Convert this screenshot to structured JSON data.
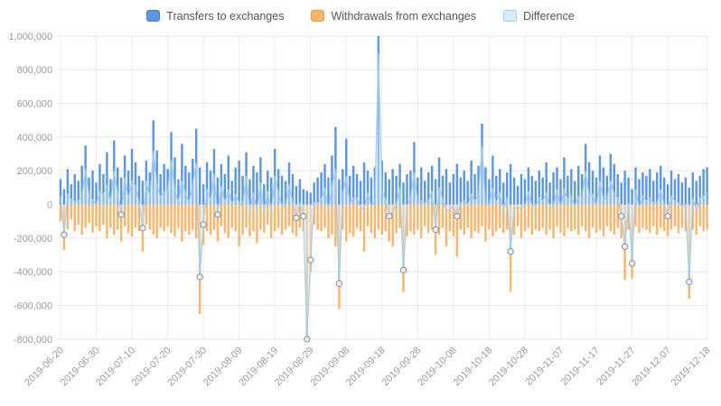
{
  "chart_data": {
    "type": "bar",
    "title": "",
    "xlabel": "",
    "ylabel": "",
    "ylim": [
      -800000,
      1000000
    ],
    "y_ticks": [
      1000000,
      800000,
      600000,
      400000,
      200000,
      0,
      -200000,
      -400000,
      -600000,
      -800000
    ],
    "x_start": "2019-06-20",
    "x_end": "2019-12-18",
    "x_ticks": [
      {
        "label": "2019-06-20",
        "i": 0
      },
      {
        "label": "2019-06-30",
        "i": 10
      },
      {
        "label": "2019-07-10",
        "i": 20
      },
      {
        "label": "2019-07-20",
        "i": 30
      },
      {
        "label": "2019-07-30",
        "i": 40
      },
      {
        "label": "2019-08-09",
        "i": 50
      },
      {
        "label": "2019-08-19",
        "i": 60
      },
      {
        "label": "2019-08-29",
        "i": 70
      },
      {
        "label": "2019-09-08",
        "i": 80
      },
      {
        "label": "2019-09-18",
        "i": 90
      },
      {
        "label": "2019-09-28",
        "i": 100
      },
      {
        "label": "2019-10-08",
        "i": 110
      },
      {
        "label": "2019-10-18",
        "i": 120
      },
      {
        "label": "2019-10-28",
        "i": 130
      },
      {
        "label": "2019-11-07",
        "i": 140
      },
      {
        "label": "2019-11-17",
        "i": 150
      },
      {
        "label": "2019-11-27",
        "i": 160
      },
      {
        "label": "2019-12-07",
        "i": 170
      },
      {
        "label": "2019-12-18",
        "i": 181
      }
    ],
    "series": [
      {
        "name": "Transfers to exchanges",
        "type": "bar",
        "fill": "#5b97e3",
        "stroke": "#3d7fd0",
        "values": [
          150000,
          90000,
          210000,
          120000,
          180000,
          140000,
          230000,
          350000,
          160000,
          200000,
          130000,
          240000,
          180000,
          310000,
          150000,
          380000,
          220000,
          160000,
          290000,
          200000,
          330000,
          250000,
          170000,
          140000,
          260000,
          190000,
          500000,
          320000,
          180000,
          240000,
          210000,
          430000,
          280000,
          150000,
          360000,
          230000,
          190000,
          270000,
          450000,
          220000,
          120000,
          250000,
          200000,
          330000,
          160000,
          240000,
          180000,
          290000,
          140000,
          220000,
          260000,
          170000,
          310000,
          150000,
          230000,
          190000,
          280000,
          120000,
          200000,
          160000,
          330000,
          210000,
          170000,
          140000,
          250000,
          180000,
          110000,
          150000,
          90000,
          80000,
          70000,
          130000,
          160000,
          190000,
          240000,
          160000,
          290000,
          460000,
          150000,
          210000,
          390000,
          170000,
          230000,
          180000,
          140000,
          250000,
          200000,
          160000,
          220000,
          1050000,
          260000,
          190000,
          150000,
          210000,
          170000,
          240000,
          130000,
          180000,
          200000,
          370000,
          160000,
          220000,
          140000,
          190000,
          230000,
          150000,
          280000,
          170000,
          210000,
          130000,
          180000,
          240000,
          160000,
          200000,
          140000,
          260000,
          180000,
          230000,
          480000,
          220000,
          150000,
          290000,
          170000,
          210000,
          130000,
          190000,
          240000,
          160000,
          110000,
          180000,
          150000,
          220000,
          170000,
          140000,
          200000,
          160000,
          250000,
          130000,
          190000,
          220000,
          150000,
          280000,
          170000,
          210000,
          140000,
          230000,
          180000,
          360000,
          250000,
          200000,
          160000,
          290000,
          220000,
          170000,
          300000,
          240000,
          180000,
          130000,
          200000,
          160000,
          90000,
          220000,
          150000,
          190000,
          170000,
          210000,
          140000,
          190000,
          230000,
          160000,
          120000,
          200000,
          150000,
          180000,
          130000,
          160000,
          100000,
          190000,
          140000,
          170000,
          210000,
          220000
        ]
      },
      {
        "name": "Withdrawals from exchanges",
        "type": "bar",
        "fill": "#f9b56b",
        "stroke": "#f19a3e",
        "values": [
          -100000,
          -270000,
          -150000,
          -90000,
          -160000,
          -120000,
          -180000,
          -140000,
          -110000,
          -170000,
          -130000,
          -160000,
          -120000,
          -200000,
          -140000,
          -180000,
          -150000,
          -220000,
          -130000,
          -170000,
          -190000,
          -140000,
          -160000,
          -280000,
          -120000,
          -150000,
          -180000,
          -200000,
          -140000,
          -160000,
          -130000,
          -170000,
          -190000,
          -140000,
          -220000,
          -160000,
          -180000,
          -150000,
          -200000,
          -650000,
          -240000,
          -160000,
          -180000,
          -150000,
          -220000,
          -130000,
          -170000,
          -200000,
          -140000,
          -160000,
          -250000,
          -180000,
          -140000,
          -190000,
          -160000,
          -230000,
          -150000,
          -170000,
          -120000,
          -200000,
          -160000,
          -140000,
          -180000,
          -150000,
          -130000,
          -170000,
          -190000,
          -140000,
          -160000,
          -880000,
          -400000,
          -120000,
          -150000,
          -160000,
          -140000,
          -200000,
          -180000,
          -250000,
          -620000,
          -150000,
          -220000,
          -170000,
          -190000,
          -140000,
          -160000,
          -280000,
          -130000,
          -170000,
          -200000,
          -150000,
          -180000,
          -160000,
          -220000,
          -250000,
          -170000,
          -140000,
          -520000,
          -190000,
          -160000,
          -180000,
          -150000,
          -200000,
          -130000,
          -170000,
          -150000,
          -300000,
          -180000,
          -140000,
          -250000,
          -160000,
          -190000,
          -310000,
          -150000,
          -180000,
          -140000,
          -200000,
          -160000,
          -170000,
          -130000,
          -220000,
          -150000,
          -190000,
          -160000,
          -140000,
          -170000,
          -150000,
          -520000,
          -180000,
          -130000,
          -200000,
          -160000,
          -140000,
          -180000,
          -150000,
          -160000,
          -140000,
          -180000,
          -150000,
          -200000,
          -130000,
          -170000,
          -190000,
          -140000,
          -160000,
          -150000,
          -180000,
          -130000,
          -160000,
          -200000,
          -140000,
          -170000,
          -150000,
          -190000,
          -130000,
          -160000,
          -180000,
          -140000,
          -200000,
          -450000,
          -150000,
          -440000,
          -130000,
          -170000,
          -140000,
          -150000,
          -170000,
          -130000,
          -180000,
          -140000,
          -160000,
          -190000,
          -150000,
          -130000,
          -170000,
          -140000,
          -160000,
          -560000,
          -150000,
          -180000,
          -130000,
          -160000,
          -150000
        ]
      },
      {
        "name": "Difference",
        "type": "line",
        "fill": "#d9ecf9",
        "stroke": "#9fcdec",
        "derived": "sum_of_bar_series"
      }
    ],
    "grid": true,
    "legend_position": "top"
  }
}
